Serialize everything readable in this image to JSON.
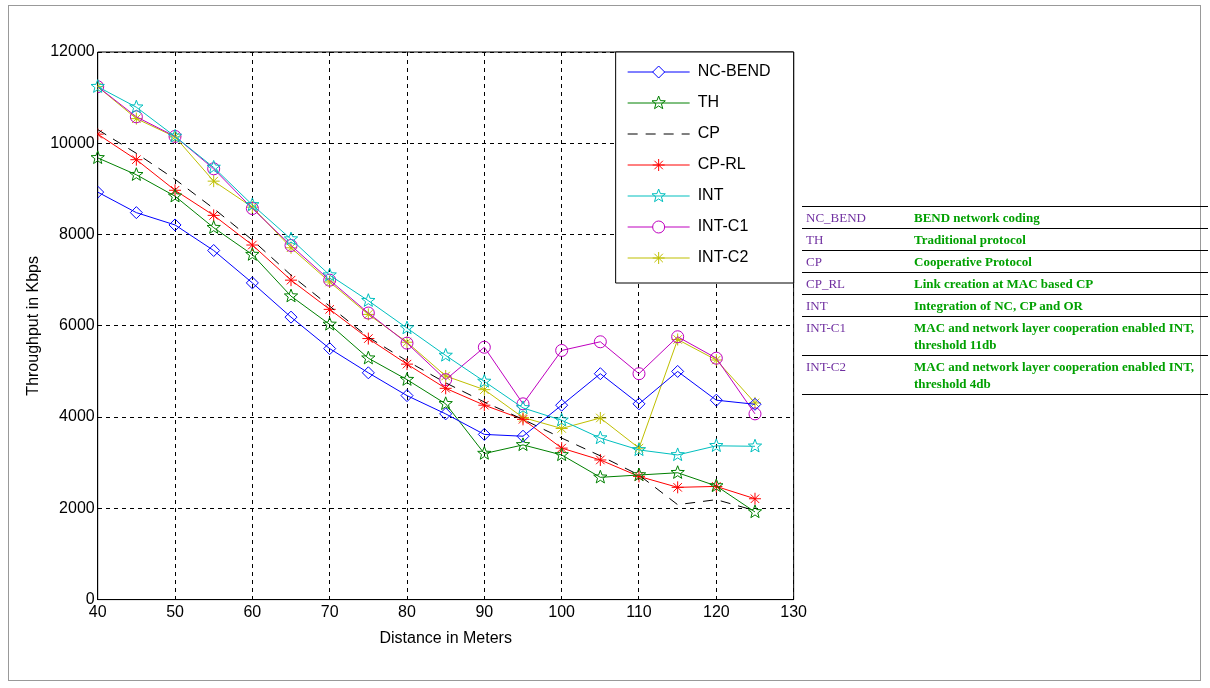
{
  "chart_data": {
    "type": "line",
    "xlabel": "Distance in Meters",
    "ylabel": "Throughput in Kbps",
    "x": [
      40,
      45,
      50,
      55,
      60,
      65,
      70,
      75,
      80,
      85,
      90,
      95,
      100,
      105,
      110,
      115,
      120,
      125
    ],
    "xlim": [
      40,
      130
    ],
    "xticks": [
      40,
      50,
      60,
      70,
      80,
      90,
      100,
      110,
      120,
      130
    ],
    "ylim": [
      0,
      12000
    ],
    "yticks": [
      0,
      2000,
      4000,
      6000,
      8000,
      10000,
      12000
    ],
    "grid": true,
    "legend": "top right",
    "line_style": "solid",
    "series": [
      {
        "name": "NC-BEND",
        "color": "#0000ff",
        "marker": "diamond",
        "values": [
          8930,
          8480,
          8210,
          7650,
          6940,
          6190,
          5500,
          4970,
          4470,
          4070,
          3620,
          3580,
          4260,
          4950,
          4290,
          5000,
          4370,
          4280
        ]
      },
      {
        "name": "TH",
        "color": "#008000",
        "marker": "star",
        "values": [
          9680,
          9310,
          8840,
          8150,
          7560,
          6650,
          6030,
          5290,
          4820,
          4290,
          3200,
          3390,
          3170,
          2680,
          2730,
          2780,
          2490,
          1920
        ]
      },
      {
        "name": "CP",
        "color": "#000000",
        "marker": "none",
        "line_style": "dashed",
        "values": [
          10300,
          9780,
          9210,
          8570,
          7880,
          7110,
          6430,
          5750,
          5230,
          4750,
          4330,
          3950,
          3540,
          3150,
          2730,
          2080,
          2190,
          1950
        ]
      },
      {
        "name": "CP-RL",
        "color": "#ff0000",
        "marker": "cross",
        "values": [
          10200,
          9640,
          8970,
          8420,
          7770,
          7000,
          6360,
          5720,
          5160,
          4630,
          4260,
          3950,
          3320,
          3060,
          2700,
          2460,
          2480,
          2210
        ]
      },
      {
        "name": "INT",
        "color": "#00bfbf",
        "marker": "star",
        "values": [
          11240,
          10790,
          10150,
          9470,
          8650,
          7900,
          7110,
          6550,
          5950,
          5350,
          4780,
          4200,
          3930,
          3540,
          3280,
          3170,
          3370,
          3360
        ]
      },
      {
        "name": "INT-C1",
        "color": "#bf00bf",
        "marker": "circle",
        "values": [
          11240,
          10580,
          10150,
          9440,
          8570,
          7760,
          7000,
          6280,
          5620,
          4820,
          5530,
          4290,
          5460,
          5650,
          4950,
          5760,
          5290,
          4070
        ]
      },
      {
        "name": "INT-C2",
        "color": "#bfbf00",
        "marker": "cross",
        "values": [
          11240,
          10540,
          10140,
          9170,
          8600,
          7710,
          6960,
          6250,
          5640,
          4900,
          4600,
          3990,
          3750,
          3980,
          3320,
          5700,
          5250,
          4310
        ]
      }
    ],
    "annotations": [
      "NC_BEND",
      "BEND network coding",
      "TH",
      "Traditional protocol",
      "CP",
      "Cooperative Protocol",
      "CP_RL",
      "Link creation at MAC based CP",
      "INT",
      "Integration of NC, CP and OR",
      "INT-C1",
      "MAC and network layer cooperation enabled INT, threshold 11db",
      "INT-C2",
      "MAC and network layer cooperation enabled INT, threshold 4db"
    ]
  }
}
